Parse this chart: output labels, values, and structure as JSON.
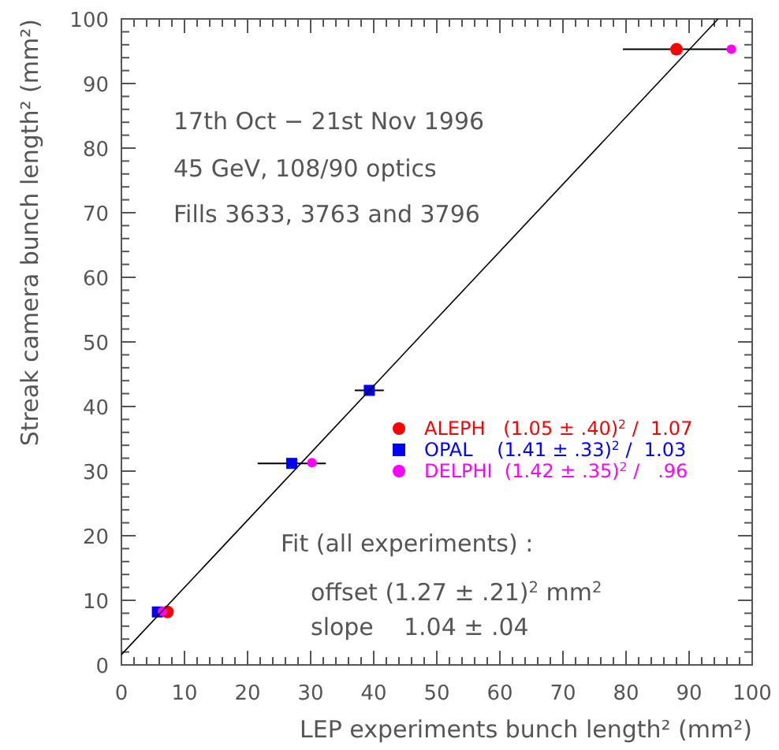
{
  "chart_data": {
    "type": "scatter",
    "xlabel": "LEP experiments bunch length² (mm²)",
    "ylabel": "Streak camera bunch length² (mm²)",
    "xlim": [
      0,
      100
    ],
    "ylim": [
      0,
      100
    ],
    "xticks": [
      0,
      10,
      20,
      30,
      40,
      50,
      60,
      70,
      80,
      90,
      100,
      {
        "value": 2,
        "label": null
      },
      {
        "value": 4,
        "label": null
      },
      {
        "value": 6,
        "label": null
      },
      {
        "value": 8,
        "label": null
      },
      {
        "value": 12,
        "label": null
      },
      {
        "value": 14,
        "label": null
      },
      {
        "value": 16,
        "label": null
      },
      {
        "value": 18,
        "label": null
      },
      {
        "value": 22,
        "label": null
      },
      {
        "value": 24,
        "label": null
      },
      {
        "value": 26,
        "label": null
      },
      {
        "value": 28,
        "label": null
      },
      {
        "value": 32,
        "label": null
      },
      {
        "value": 34,
        "label": null
      },
      {
        "value": 36,
        "label": null
      },
      {
        "value": 38,
        "label": null
      },
      {
        "value": 42,
        "label": null
      },
      {
        "value": 44,
        "label": null
      },
      {
        "value": 46,
        "label": null
      },
      {
        "value": 48,
        "label": null
      },
      {
        "value": 52,
        "label": null
      },
      {
        "value": 54,
        "label": null
      },
      {
        "value": 56,
        "label": null
      },
      {
        "value": 58,
        "label": null
      },
      {
        "value": 62,
        "label": null
      },
      {
        "value": 64,
        "label": null
      },
      {
        "value": 66,
        "label": null
      },
      {
        "value": 68,
        "label": null
      },
      {
        "value": 72,
        "label": null
      },
      {
        "value": 74,
        "label": null
      },
      {
        "value": 76,
        "label": null
      },
      {
        "value": 78,
        "label": null
      },
      {
        "value": 82,
        "label": null
      },
      {
        "value": 84,
        "label": null
      },
      {
        "value": 86,
        "label": null
      },
      {
        "value": 88,
        "label": null
      },
      {
        "value": 92,
        "label": null
      },
      {
        "value": 94,
        "label": null
      },
      {
        "value": 96,
        "label": null
      },
      {
        "value": 98,
        "label": null
      }
    ],
    "yticks": [
      0,
      10,
      20,
      30,
      40,
      50,
      60,
      70,
      80,
      90,
      100,
      {
        "value": 2,
        "label": null
      },
      {
        "value": 4,
        "label": null
      },
      {
        "value": 6,
        "label": null
      },
      {
        "value": 8,
        "label": null
      },
      {
        "value": 12,
        "label": null
      },
      {
        "value": 14,
        "label": null
      },
      {
        "value": 16,
        "label": null
      },
      {
        "value": 18,
        "label": null
      },
      {
        "value": 22,
        "label": null
      },
      {
        "value": 24,
        "label": null
      },
      {
        "value": 26,
        "label": null
      },
      {
        "value": 28,
        "label": null
      },
      {
        "value": 32,
        "label": null
      },
      {
        "value": 34,
        "label": null
      },
      {
        "value": 36,
        "label": null
      },
      {
        "value": 38,
        "label": null
      },
      {
        "value": 42,
        "label": null
      },
      {
        "value": 44,
        "label": null
      },
      {
        "value": 46,
        "label": null
      },
      {
        "value": 48,
        "label": null
      },
      {
        "value": 52,
        "label": null
      },
      {
        "value": 54,
        "label": null
      },
      {
        "value": 56,
        "label": null
      },
      {
        "value": 58,
        "label": null
      },
      {
        "value": 62,
        "label": null
      },
      {
        "value": 64,
        "label": null
      },
      {
        "value": 66,
        "label": null
      },
      {
        "value": 68,
        "label": null
      },
      {
        "value": 72,
        "label": null
      },
      {
        "value": 74,
        "label": null
      },
      {
        "value": 76,
        "label": null
      },
      {
        "value": 78,
        "label": null
      },
      {
        "value": 82,
        "label": null
      },
      {
        "value": 84,
        "label": null
      },
      {
        "value": 86,
        "label": null
      },
      {
        "value": 88,
        "label": null
      },
      {
        "value": 92,
        "label": null
      },
      {
        "value": 94,
        "label": null
      },
      {
        "value": 96,
        "label": null
      },
      {
        "value": 98,
        "label": null
      }
    ],
    "legend": "right",
    "grid": false,
    "series": [
      {
        "name": "ALEPH   (1.05 ± .40)$^{2}$ /  1.07",
        "color": "#ff0000",
        "marker": "circle",
        "x": [
          88,
          7.3
        ],
        "values": [
          95.3,
          8.2
        ],
        "xerrors": [
          8.5,
          null
        ]
      },
      {
        "name": "OPAL    (1.41 ± .33)$^{2}$ /  1.03",
        "color": "#0000ff",
        "marker": "square",
        "x": [
          39.3,
          27,
          5.7
        ],
        "values": [
          42.5,
          31.2,
          8.2
        ],
        "xerrors": [
          2.3,
          5.4,
          null
        ]
      },
      {
        "name": "DELPHI  (1.42 ± .35)$^{2}$ /   .96",
        "color": "#ff00ff",
        "marker": "circle",
        "x": [
          96.7,
          30.2,
          6.5
        ],
        "values": [
          95.3,
          31.3,
          8.3
        ]
      },
      {
        "type": "line",
        "color": "#000000",
        "marker": "none",
        "x": [
          0,
          94.6
        ],
        "values": [
          1.6,
          100
        ]
      }
    ],
    "annotations": [
      "17th Oct − 21st Nov 1996",
      "45 GeV, 108/90 optics",
      "Fills 3633, 3763 and 3796",
      "Fit (all experiments) :",
      "offset (1.27 ± .21)$^{2}$ mm$^{2}$",
      "slope    1.04 ± .04"
    ]
  }
}
